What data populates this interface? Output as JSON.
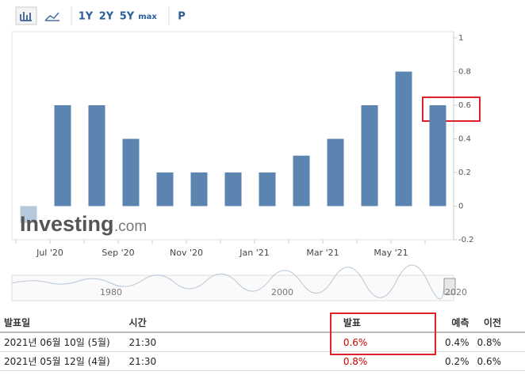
{
  "toolbar": {
    "buttons": [
      "1Y",
      "2Y",
      "5Y",
      "max",
      "P"
    ]
  },
  "chart_data": {
    "type": "bar",
    "categories": [
      null,
      "Jul '20",
      null,
      "Sep '20",
      null,
      "Nov '20",
      null,
      "Jan '21",
      null,
      "Mar '21",
      null,
      "May '21",
      null
    ],
    "values": [
      -0.1,
      0.6,
      0.6,
      0.4,
      0.2,
      0.2,
      0.2,
      0.2,
      0.3,
      0.4,
      0.6,
      0.8,
      0.6
    ],
    "color": "#5b84b1",
    "ylim": [
      -0.2,
      1
    ],
    "yticks": [
      -0.2,
      0,
      0.2,
      0.4,
      0.6,
      0.8,
      1
    ]
  },
  "watermark": {
    "brand": "Investing",
    "suffix": ".com"
  },
  "navigator": {
    "labels": [
      "1980",
      "2000",
      "2020"
    ]
  },
  "table": {
    "header": [
      "발표일",
      "시간",
      "발표",
      "예측",
      "이전"
    ],
    "rows": [
      [
        "2021년 06월 10일 (5월)",
        "21:30",
        "0.6%",
        "0.4%",
        "0.8%"
      ],
      [
        "2021년 05월 12일 (4월)",
        "21:30",
        "0.8%",
        "0.2%",
        "0.6%"
      ]
    ]
  }
}
